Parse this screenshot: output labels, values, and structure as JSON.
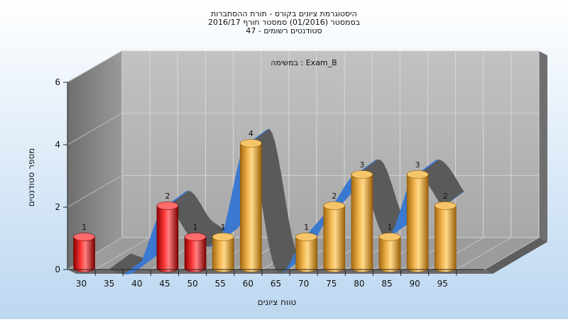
{
  "chart_data": {
    "type": "bar",
    "title_lines": [
      "היסטוגרמת ציונים בקורס - תורת ההסתברות",
      "בסמסטר  (01/2016)  סמסטר חורף 2016/17",
      "סטודנטים רשומים - 47"
    ],
    "annotation": "במשימה : Exam_B",
    "xlabel": "טווח ציונים",
    "ylabel": "מספר סטודנטים",
    "x_ticks": [
      "30",
      "35",
      "40",
      "45",
      "50",
      "55",
      "60",
      "65",
      "70",
      "75",
      "80",
      "85",
      "90",
      "95"
    ],
    "y_ticks": [
      "0",
      "2",
      "4",
      "6"
    ],
    "ylim": [
      0,
      6
    ],
    "grid": true,
    "bars": [
      {
        "bin": 30,
        "value": 1,
        "label": "1",
        "color": "red"
      },
      {
        "bin": 45,
        "value": 2,
        "label": "2",
        "color": "red"
      },
      {
        "bin": 50,
        "value": 1,
        "label": "1",
        "color": "red"
      },
      {
        "bin": 55,
        "value": 1,
        "label": "1",
        "color": "orange"
      },
      {
        "bin": 60,
        "value": 4,
        "label": "4",
        "color": "orange"
      },
      {
        "bin": 70,
        "value": 1,
        "label": "1",
        "color": "orange"
      },
      {
        "bin": 75,
        "value": 2,
        "label": "2",
        "color": "orange"
      },
      {
        "bin": 80,
        "value": 3,
        "label": "3",
        "color": "orange"
      },
      {
        "bin": 85,
        "value": 1,
        "label": "1",
        "color": "orange"
      },
      {
        "bin": 90,
        "value": 3,
        "label": "3",
        "color": "orange"
      },
      {
        "bin": 95,
        "value": 2,
        "label": "2",
        "color": "orange"
      }
    ],
    "colors": {
      "red_bar": "#e01818",
      "orange_bar": "#e8a63a",
      "ribbon_front": "#3b78d0",
      "ribbon_back": "#5a5a5a",
      "wall": "#b4b4b4",
      "side_wall": "#808080",
      "background": "#cfe3f5"
    }
  }
}
